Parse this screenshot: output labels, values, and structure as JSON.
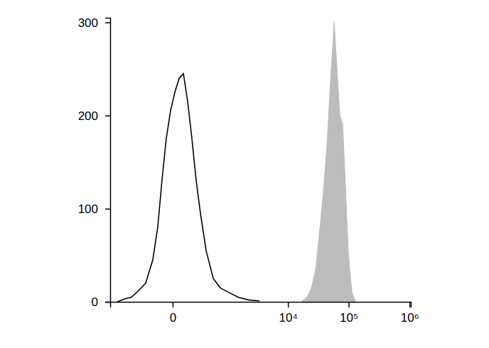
{
  "chart_data": {
    "type": "histogram",
    "log": "x",
    "xlim": [
      -1250,
      1050000
    ],
    "xticks": [
      0,
      {
        "value": 10000,
        "label": "10⁴"
      },
      {
        "value": 100000,
        "label": "10⁵"
      },
      {
        "value": 1000000,
        "label": "10⁶"
      }
    ],
    "ylim": [
      0,
      305
    ],
    "yticks": [
      0,
      100,
      200,
      300
    ],
    "series": [
      {
        "type": "line",
        "color": "#000000",
        "x": [
          -928,
          -679,
          -488,
          -342,
          -231,
          -146,
          -99,
          -65,
          -36,
          -11,
          11,
          36,
          65,
          99,
          139,
          186,
          241,
          330,
          472,
          657,
          957,
          1412,
          2176,
          3325
        ],
        "values": [
          0,
          3,
          5,
          12,
          20,
          45,
          80,
          130,
          175,
          205,
          225,
          240,
          245,
          215,
          175,
          130,
          95,
          55,
          25,
          15,
          10,
          5,
          2,
          1
        ]
      },
      {
        "type": "area",
        "color": "#bdbdbd",
        "x": [
          17190,
          20800,
          24450,
          28740,
          33800,
          38670,
          44240,
          50660,
          57940,
          64570,
          71920,
          80130,
          89240,
          99360,
          113660,
          130000
        ],
        "values": [
          1,
          5,
          15,
          35,
          80,
          120,
          170,
          240,
          300,
          250,
          200,
          190,
          120,
          50,
          10,
          0
        ]
      }
    ]
  }
}
